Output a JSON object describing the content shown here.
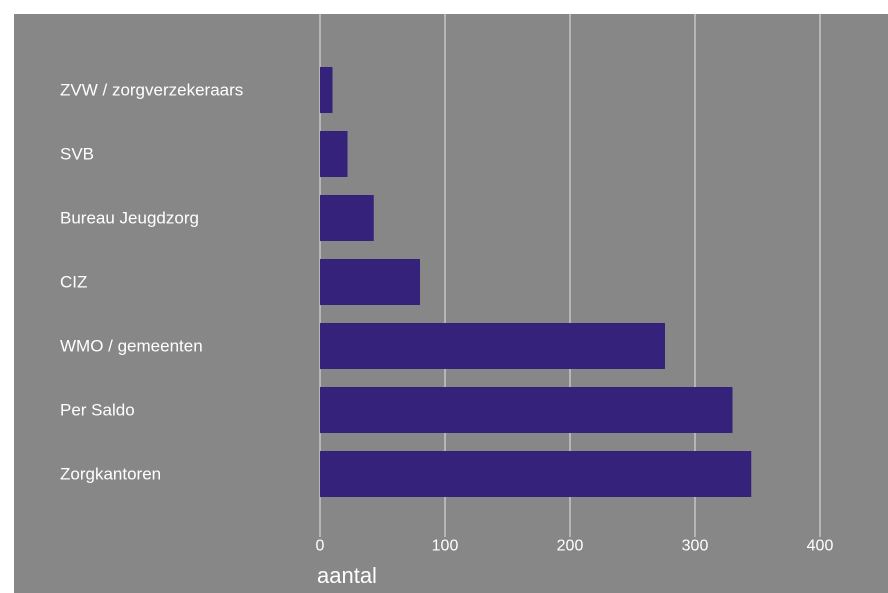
{
  "chart_data": {
    "type": "bar",
    "orientation": "horizontal",
    "categories": [
      "ZVW / zorgverzekeraars",
      "SVB",
      "Bureau Jeugdzorg",
      "CIZ",
      "WMO / gemeenten",
      "Per Saldo",
      "Zorgkantoren"
    ],
    "values": [
      10,
      22,
      43,
      80,
      276,
      330,
      345
    ],
    "xlabel": "aantal",
    "ylabel": "",
    "xlim": [
      0,
      400
    ],
    "xticks": [
      0,
      100,
      200,
      300,
      400
    ],
    "grid": "vertical",
    "colors": {
      "bar": "#35227a",
      "background": "#878787",
      "grid": "#d6d6d6",
      "text": "#ffffff"
    }
  }
}
